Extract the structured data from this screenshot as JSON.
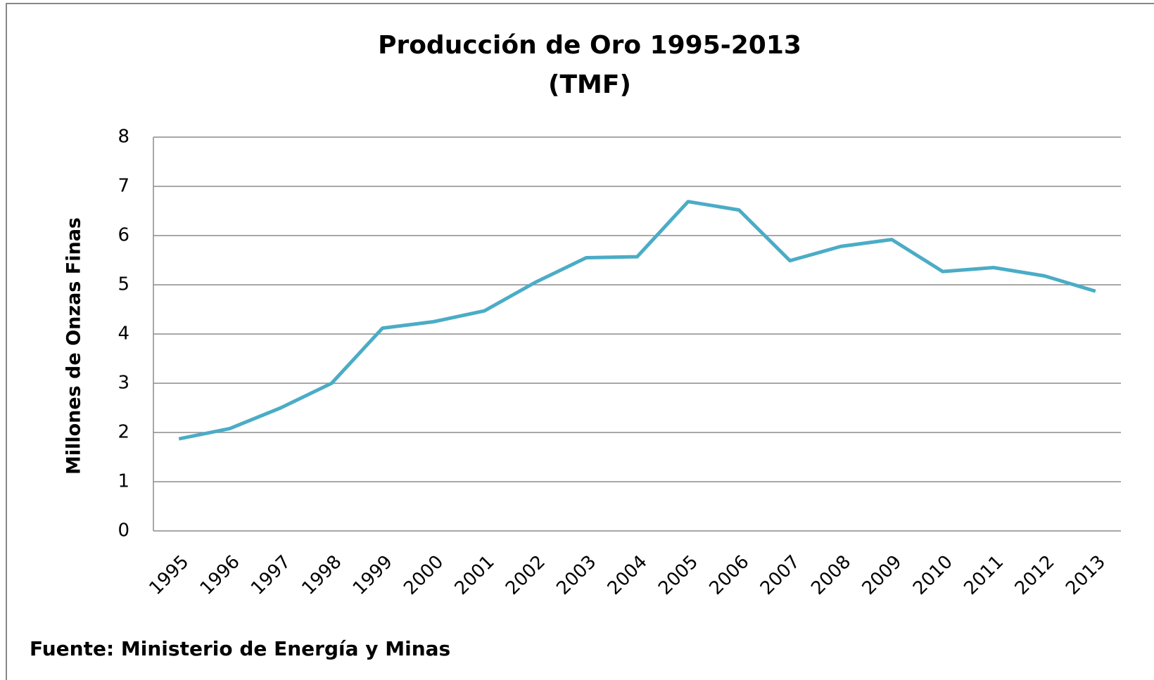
{
  "chart_data": {
    "type": "line",
    "title": "Producción de Oro 1995-2013",
    "subtitle": "(TMF)",
    "y_label": "Millones de Onzas Finas",
    "source": "Fuente: Ministerio de Energía y Minas",
    "categories": [
      "1995",
      "1996",
      "1997",
      "1998",
      "1999",
      "2000",
      "2001",
      "2002",
      "2003",
      "2004",
      "2005",
      "2006",
      "2007",
      "2008",
      "2009",
      "2010",
      "2011",
      "2012",
      "2013"
    ],
    "series": [
      {
        "name": "Producción",
        "color": "#4bacc6",
        "values": [
          1.87,
          2.08,
          2.5,
          3.0,
          4.12,
          4.25,
          4.47,
          5.05,
          5.55,
          5.57,
          6.69,
          6.52,
          5.49,
          5.78,
          5.92,
          5.27,
          5.35,
          5.18,
          4.87
        ]
      }
    ],
    "ylim": [
      0,
      8
    ],
    "yticks": [
      0,
      1,
      2,
      3,
      4,
      5,
      6,
      7,
      8
    ],
    "grid": true
  }
}
